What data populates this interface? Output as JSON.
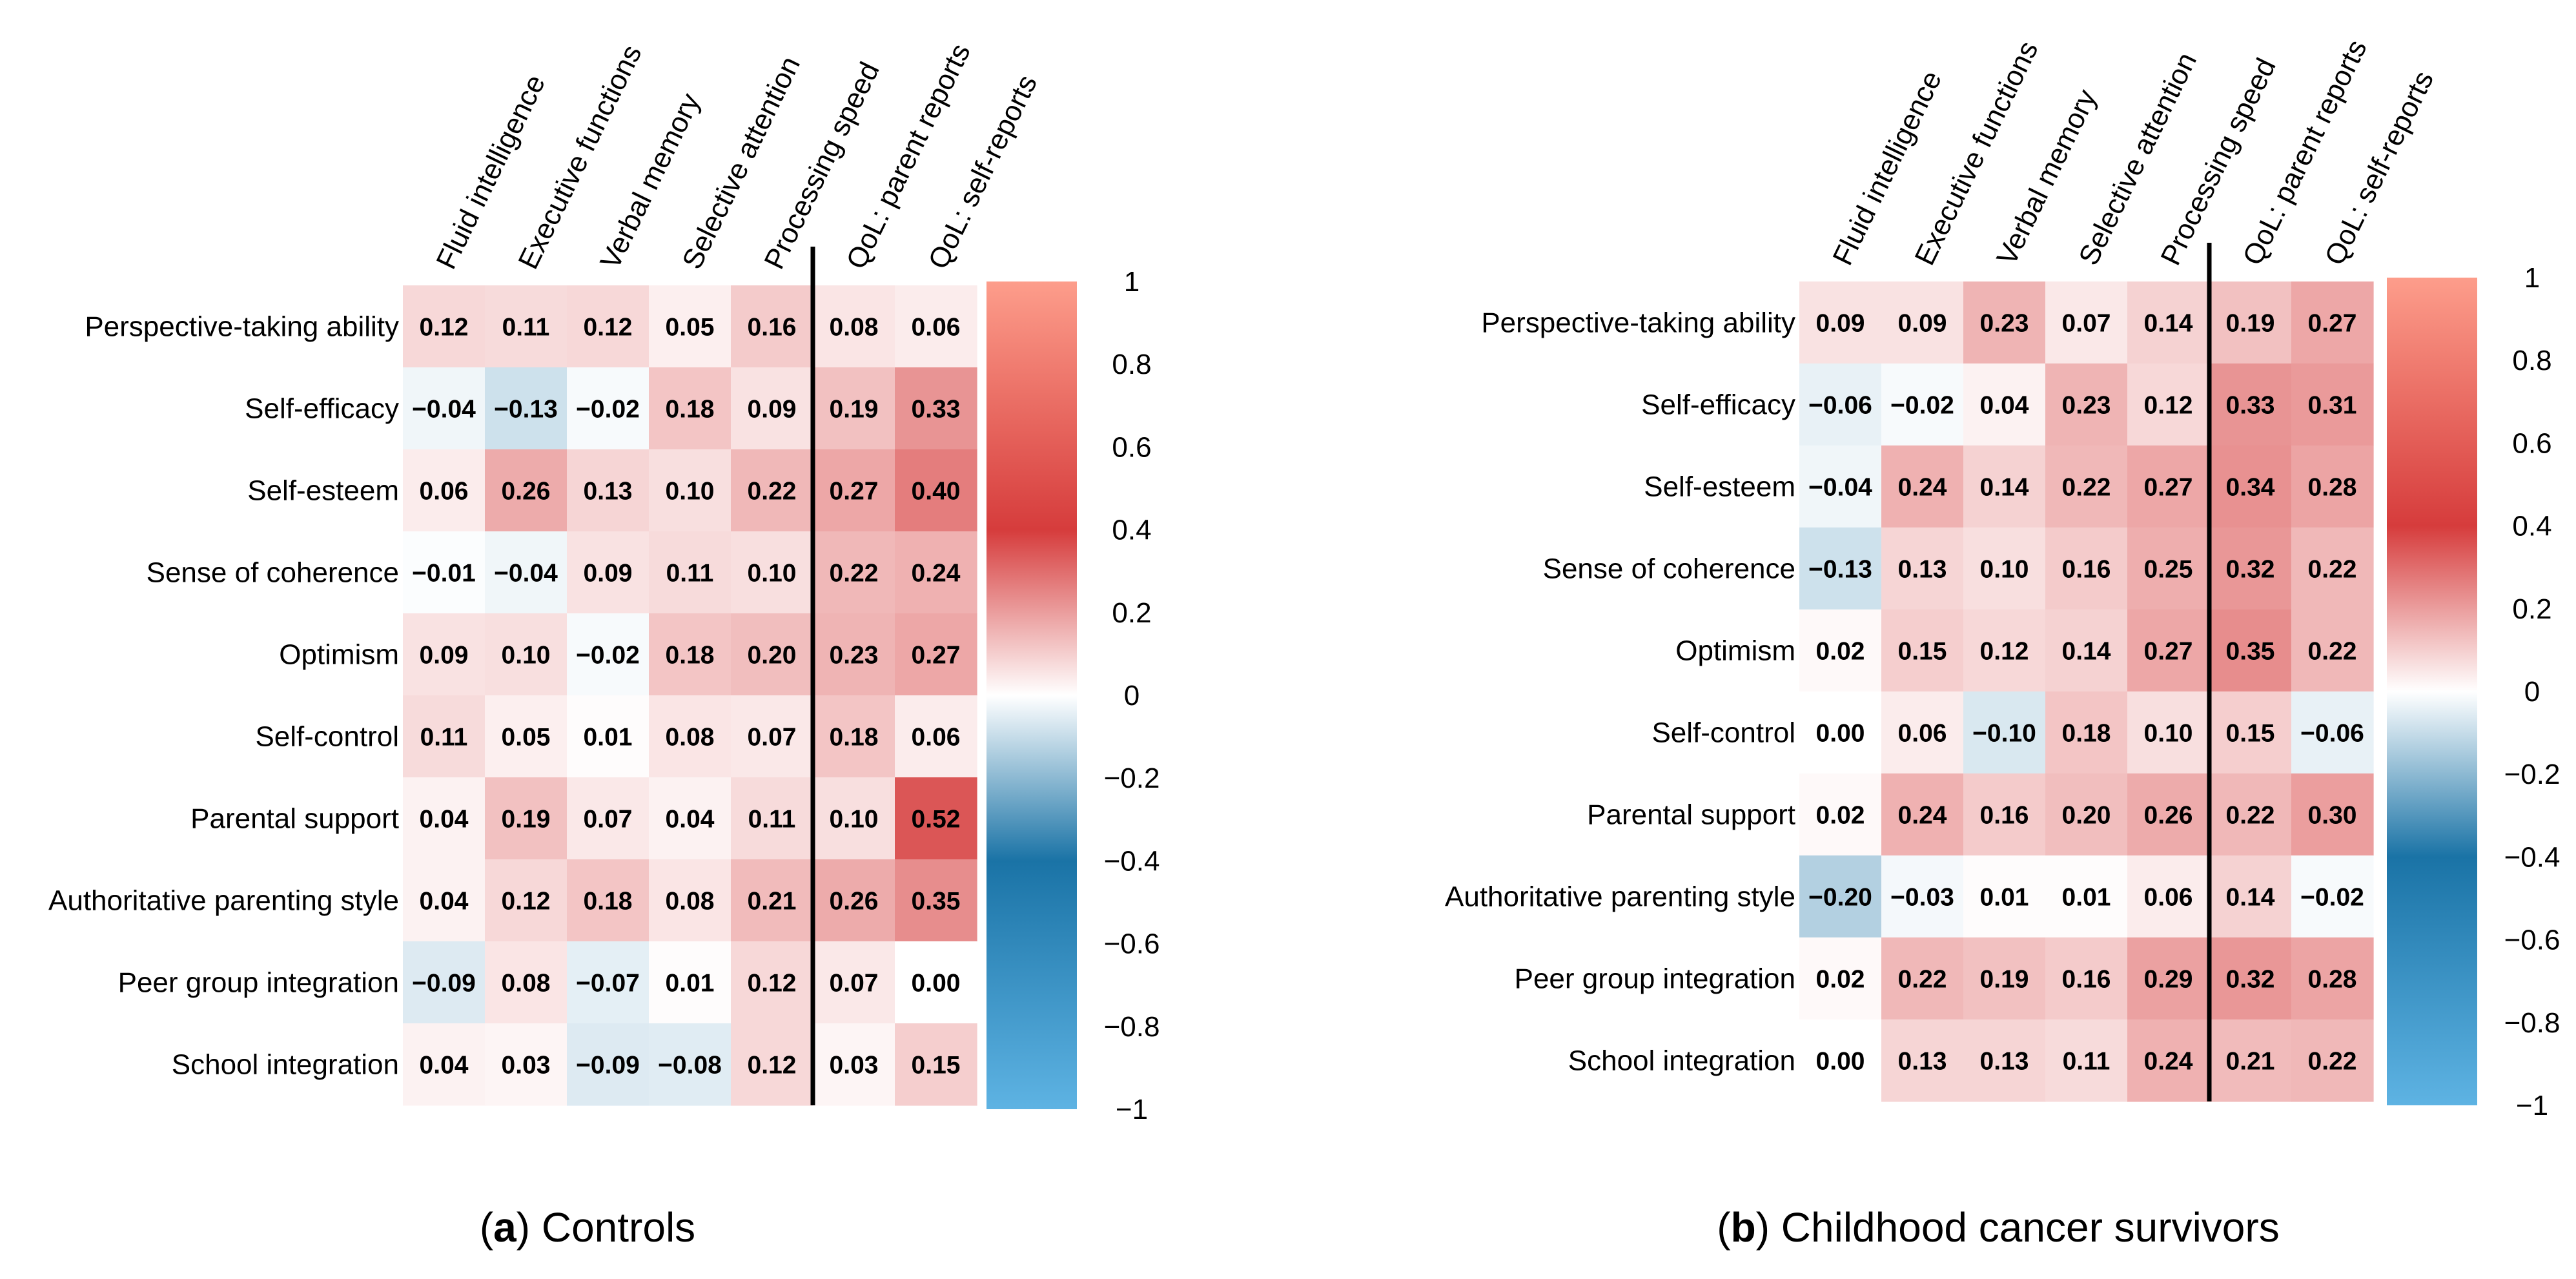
{
  "chart_data": [
    {
      "type": "heatmap",
      "caption_letter": "a",
      "caption_text": ") Controls",
      "rows": [
        "Perspective-taking ability",
        "Self-efficacy",
        "Self-esteem",
        "Sense of coherence",
        "Optimism",
        "Self-control",
        "Parental support",
        "Authoritative parenting style",
        "Peer group integration",
        "School integration"
      ],
      "columns": [
        "Fluid intelligence",
        "Executive functions",
        "Verbal memory",
        "Selective attention",
        "Processing speed",
        "QoL: parent reports",
        "QoL: self-reports"
      ],
      "values": [
        [
          0.12,
          0.11,
          0.12,
          0.05,
          0.16,
          0.08,
          0.06
        ],
        [
          -0.04,
          -0.13,
          -0.02,
          0.18,
          0.09,
          0.19,
          0.33
        ],
        [
          0.06,
          0.26,
          0.13,
          0.1,
          0.22,
          0.27,
          0.4
        ],
        [
          -0.01,
          -0.04,
          0.09,
          0.11,
          0.1,
          0.22,
          0.24
        ],
        [
          0.09,
          0.1,
          -0.02,
          0.18,
          0.2,
          0.23,
          0.27
        ],
        [
          0.11,
          0.05,
          0.01,
          0.08,
          0.07,
          0.18,
          0.06
        ],
        [
          0.04,
          0.19,
          0.07,
          0.04,
          0.11,
          0.1,
          0.52
        ],
        [
          0.04,
          0.12,
          0.18,
          0.08,
          0.21,
          0.26,
          0.35
        ],
        [
          -0.09,
          0.08,
          -0.07,
          0.01,
          0.12,
          0.07,
          0.0
        ],
        [
          0.04,
          0.03,
          -0.09,
          -0.08,
          0.12,
          0.03,
          0.15
        ]
      ],
      "value_labels": [
        [
          "0.12",
          "0.11",
          "0.12",
          "0.05",
          "0.16",
          "0.08",
          "0.06"
        ],
        [
          "−0.04",
          "−0.13",
          "−0.02",
          "0.18",
          "0.09",
          "0.19",
          "0.33"
        ],
        [
          "0.06",
          "0.26",
          "0.13",
          "0.10",
          "0.22",
          "0.27",
          "0.40"
        ],
        [
          "−0.01",
          "−0.04",
          "0.09",
          "0.11",
          "0.10",
          "0.22",
          "0.24"
        ],
        [
          "0.09",
          "0.10",
          "−0.02",
          "0.18",
          "0.20",
          "0.23",
          "0.27"
        ],
        [
          "0.11",
          "0.05",
          "0.01",
          "0.08",
          "0.07",
          "0.18",
          "0.06"
        ],
        [
          "0.04",
          "0.19",
          "0.07",
          "0.04",
          "0.11",
          "0.10",
          "0.52"
        ],
        [
          "0.04",
          "0.12",
          "0.18",
          "0.08",
          "0.21",
          "0.26",
          "0.35"
        ],
        [
          "−0.09",
          "0.08",
          "−0.07",
          "0.01",
          "0.12",
          "0.07",
          "0.00"
        ],
        [
          "0.04",
          "0.03",
          "−0.09",
          "−0.08",
          "0.12",
          "0.03",
          "0.15"
        ]
      ],
      "separator_after_column": 5,
      "colorbar_range": [
        -1,
        1
      ],
      "colorbar_ticks": [
        "1",
        "0.8",
        "0.6",
        "0.4",
        "0.2",
        "0",
        "−0.2",
        "−0.4",
        "−0.6",
        "−0.8",
        "−1"
      ]
    },
    {
      "type": "heatmap",
      "caption_letter": "b",
      "caption_text": ") Childhood cancer survivors",
      "rows": [
        "Perspective-taking ability",
        "Self-efficacy",
        "Self-esteem",
        "Sense of coherence",
        "Optimism",
        "Self-control",
        "Parental support",
        "Authoritative parenting style",
        "Peer group integration",
        "School integration"
      ],
      "columns": [
        "Fluid intelligence",
        "Executive functions",
        "Verbal memory",
        "Selective attention",
        "Processing speed",
        "QoL: parent reports",
        "QoL: self-reports"
      ],
      "values": [
        [
          0.09,
          0.09,
          0.23,
          0.07,
          0.14,
          0.19,
          0.27
        ],
        [
          -0.06,
          -0.02,
          0.04,
          0.23,
          0.12,
          0.33,
          0.31
        ],
        [
          -0.04,
          0.24,
          0.14,
          0.22,
          0.27,
          0.34,
          0.28
        ],
        [
          -0.13,
          0.13,
          0.1,
          0.16,
          0.25,
          0.32,
          0.22
        ],
        [
          0.02,
          0.15,
          0.12,
          0.14,
          0.27,
          0.35,
          0.22
        ],
        [
          0.0,
          0.06,
          -0.1,
          0.18,
          0.1,
          0.15,
          -0.06
        ],
        [
          0.02,
          0.24,
          0.16,
          0.2,
          0.26,
          0.22,
          0.3
        ],
        [
          -0.2,
          -0.03,
          0.01,
          0.01,
          0.06,
          0.14,
          -0.02
        ],
        [
          0.02,
          0.22,
          0.19,
          0.16,
          0.29,
          0.32,
          0.28
        ],
        [
          0.0,
          0.13,
          0.13,
          0.11,
          0.24,
          0.21,
          0.22
        ]
      ],
      "value_labels": [
        [
          "0.09",
          "0.09",
          "0.23",
          "0.07",
          "0.14",
          "0.19",
          "0.27"
        ],
        [
          "−0.06",
          "−0.02",
          "0.04",
          "0.23",
          "0.12",
          "0.33",
          "0.31"
        ],
        [
          "−0.04",
          "0.24",
          "0.14",
          "0.22",
          "0.27",
          "0.34",
          "0.28"
        ],
        [
          "−0.13",
          "0.13",
          "0.10",
          "0.16",
          "0.25",
          "0.32",
          "0.22"
        ],
        [
          "0.02",
          "0.15",
          "0.12",
          "0.14",
          "0.27",
          "0.35",
          "0.22"
        ],
        [
          "0.00",
          "0.06",
          "−0.10",
          "0.18",
          "0.10",
          "0.15",
          "−0.06"
        ],
        [
          "0.02",
          "0.24",
          "0.16",
          "0.20",
          "0.26",
          "0.22",
          "0.30"
        ],
        [
          "−0.20",
          "−0.03",
          "0.01",
          "0.01",
          "0.06",
          "0.14",
          "−0.02"
        ],
        [
          "0.02",
          "0.22",
          "0.19",
          "0.16",
          "0.29",
          "0.32",
          "0.28"
        ],
        [
          "0.00",
          "0.13",
          "0.13",
          "0.11",
          "0.24",
          "0.21",
          "0.22"
        ]
      ],
      "separator_after_column": 5,
      "colorbar_range": [
        -1,
        1
      ],
      "colorbar_ticks": [
        "1",
        "0.8",
        "0.6",
        "0.4",
        "0.2",
        "0",
        "−0.2",
        "−0.4",
        "−0.6",
        "−0.8",
        "−1"
      ]
    }
  ],
  "colors": {
    "positive_max": "#fd9d8b",
    "positive_mid": "#d63c3c",
    "zero": "#ffffff",
    "negative_mid": "#1a73a6",
    "negative_max": "#5eb3e3",
    "separator": "#000000"
  }
}
